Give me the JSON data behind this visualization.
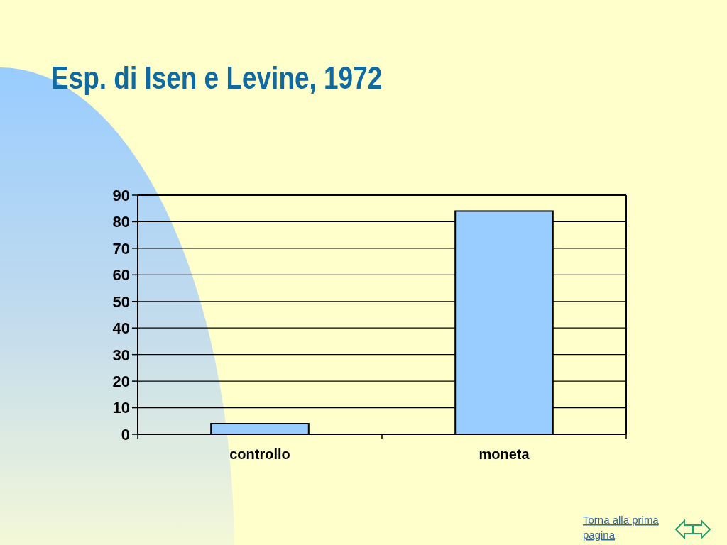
{
  "chart_data": {
    "type": "bar",
    "title": "Esp. di Isen e Levine, 1972",
    "categories": [
      "controllo",
      "moneta"
    ],
    "values": [
      4,
      84
    ],
    "color": "#99ccff",
    "ylim": [
      0,
      90
    ],
    "yticks": [
      0,
      10,
      20,
      30,
      40,
      50,
      60,
      70,
      80,
      90
    ],
    "grid": "y",
    "annotations": [
      "Torna alla prima pagina"
    ]
  }
}
